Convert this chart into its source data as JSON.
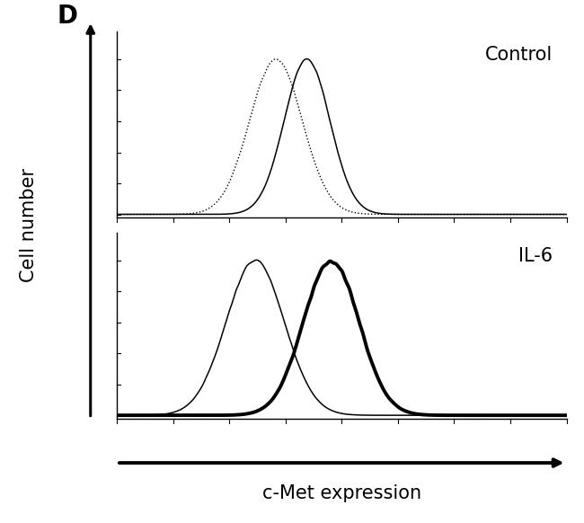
{
  "panel_label": "D",
  "top_label": "Control",
  "bottom_label": "IL-6",
  "ylabel": "Cell number",
  "xlabel": "c-Met expression",
  "background_color": "#ffffff",
  "control": {
    "isotype": {
      "mu": 3.8,
      "sigma": 0.38,
      "style": "dotted",
      "lw": 1.0,
      "color": "#000000",
      "noise": 0.012
    },
    "cmet": {
      "mu": 4.25,
      "sigma": 0.33,
      "style": "solid",
      "lw": 1.1,
      "color": "#000000",
      "noise": 0.008
    }
  },
  "il6": {
    "isotype": {
      "mu": 3.5,
      "sigma": 0.42,
      "style": "solid",
      "lw": 1.1,
      "color": "#000000",
      "noise": 0.015
    },
    "cmet": {
      "mu": 4.6,
      "sigma": 0.4,
      "style": "solid",
      "lw": 2.8,
      "color": "#000000",
      "noise": 0.025
    }
  },
  "xrange": [
    1.5,
    8.0
  ],
  "label_fontsize": 15,
  "panel_fontsize": 20,
  "tick_label_fontsize": 8
}
